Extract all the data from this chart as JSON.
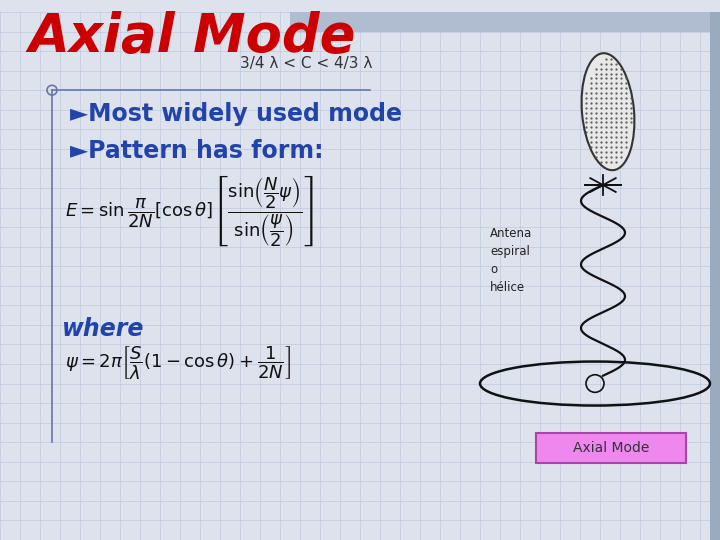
{
  "title": "Axial Mode",
  "subtitle": "3/4 λ < C < 4/3 λ",
  "bullet1": "►Most widely used mode",
  "bullet2": "►Pattern has form:",
  "where_label": "where",
  "bg_color": "#dde2ed",
  "grid_color": "#b8c4d8",
  "title_color": "#cc0000",
  "subtitle_color": "#333333",
  "text_color": "#2244aa",
  "where_color": "#2244aa",
  "axial_mode_box_color": "#ee88ee",
  "axial_mode_text": "Axial Mode",
  "antenna_label": "Antena\nespiral\no\nhélice",
  "top_bar_color": "#b0bcd0",
  "title_fontsize": 38,
  "subtitle_fontsize": 11,
  "bullet_fontsize": 17,
  "where_fontsize": 17
}
